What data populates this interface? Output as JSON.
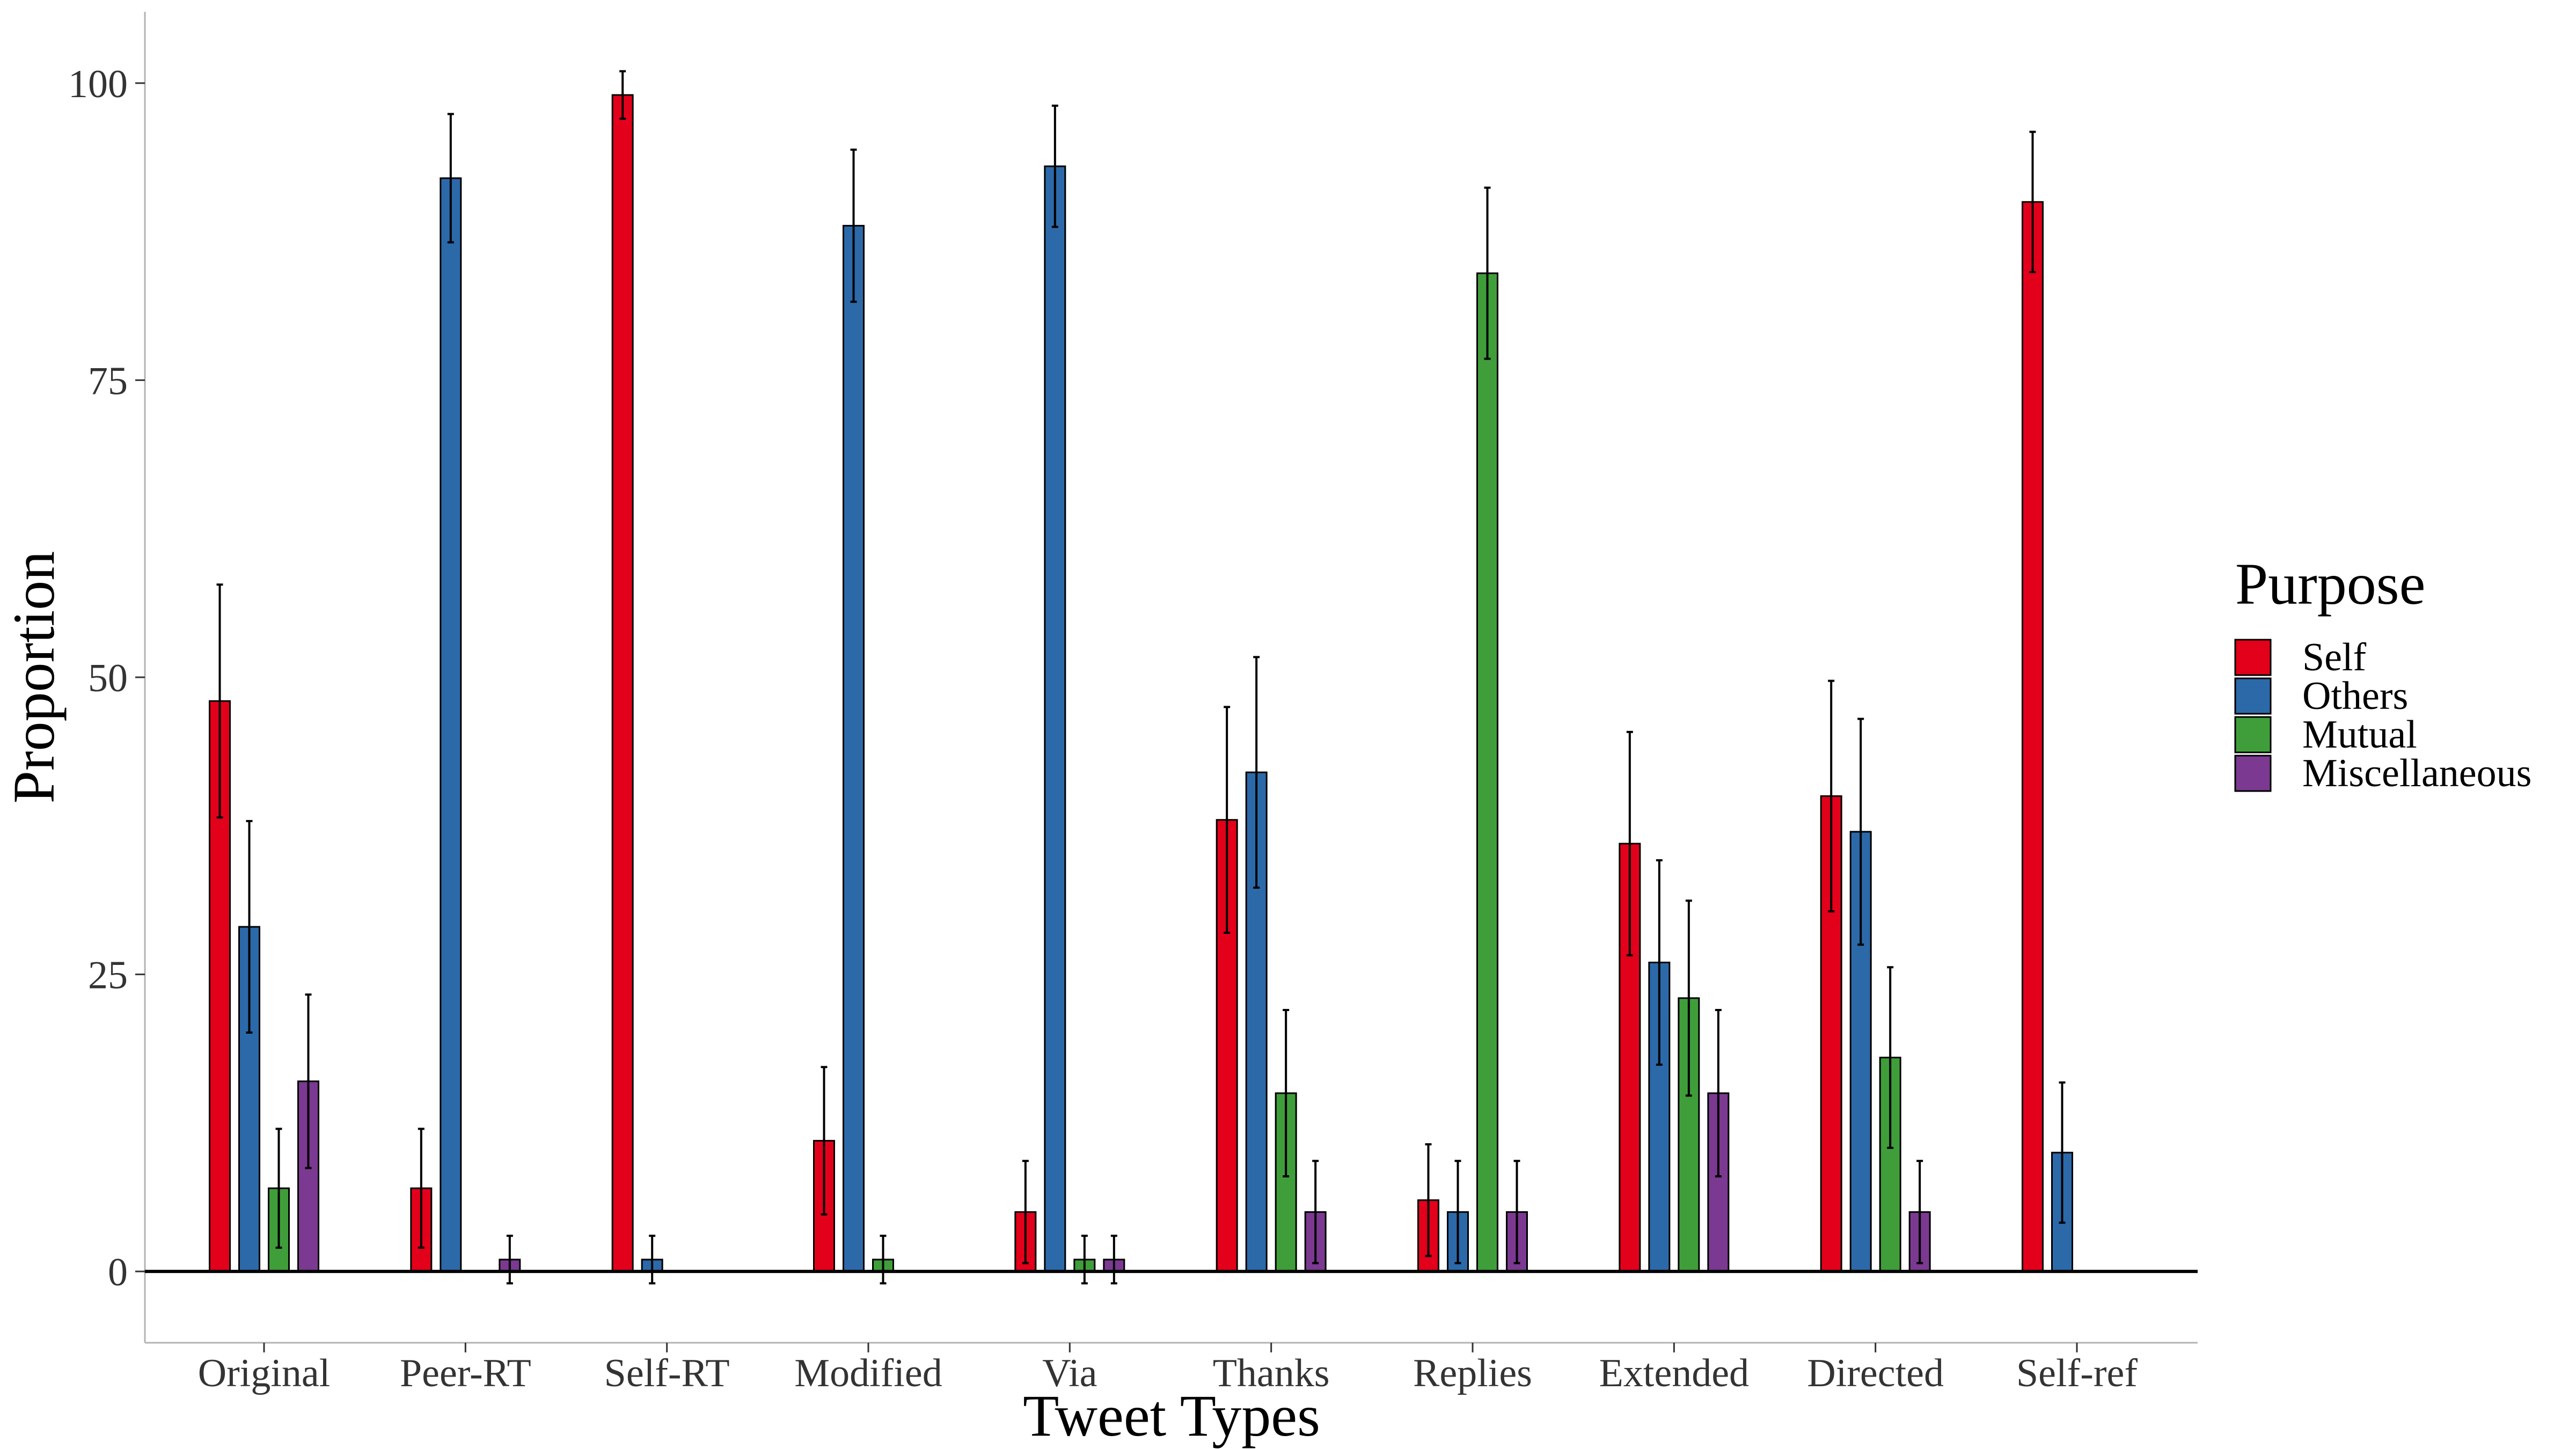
{
  "chart_data": {
    "type": "bar",
    "xlabel": "Tweet Types",
    "ylabel": "Proportion",
    "ylim": [
      -6,
      106
    ],
    "yticks": [
      0,
      25,
      50,
      75,
      100
    ],
    "grid": false,
    "legend": {
      "title": "Purpose",
      "position": "right",
      "entries": [
        "Self",
        "Others",
        "Mutual",
        "Miscellaneous"
      ]
    },
    "colors": {
      "Self": "#E3001B",
      "Others": "#2C69A9",
      "Mutual": "#3F9E3A",
      "Miscellaneous": "#7B3991"
    },
    "categories": [
      "Original",
      "Peer-RT",
      "Self-RT",
      "Modified",
      "Via",
      "Thanks",
      "Replies",
      "Extended",
      "Directed",
      "Self-ref"
    ],
    "series": [
      {
        "name": "Self",
        "values": [
          48,
          7,
          99,
          11,
          5,
          38,
          6,
          36,
          40,
          90
        ],
        "errors": [
          9.8,
          5,
          2,
          6.2,
          4.3,
          9.5,
          4.7,
          9.4,
          9.7,
          5.9
        ]
      },
      {
        "name": "Others",
        "values": [
          29,
          92,
          1,
          88,
          93,
          42,
          5,
          26,
          37,
          10
        ],
        "errors": [
          8.9,
          5.4,
          2,
          6.4,
          5.1,
          9.7,
          4.3,
          8.6,
          9.5,
          5.9
        ]
      },
      {
        "name": "Mutual",
        "values": [
          7,
          null,
          null,
          1,
          1,
          15,
          84,
          23,
          18,
          null
        ],
        "errors": [
          5,
          null,
          null,
          2,
          2,
          7,
          7.2,
          8.2,
          7.6,
          null
        ]
      },
      {
        "name": "Miscellaneous",
        "values": [
          16,
          1,
          null,
          null,
          1,
          5,
          5,
          15,
          5,
          null
        ],
        "errors": [
          7.3,
          2,
          null,
          null,
          2,
          4.3,
          4.3,
          7,
          4.3,
          null
        ]
      }
    ]
  }
}
